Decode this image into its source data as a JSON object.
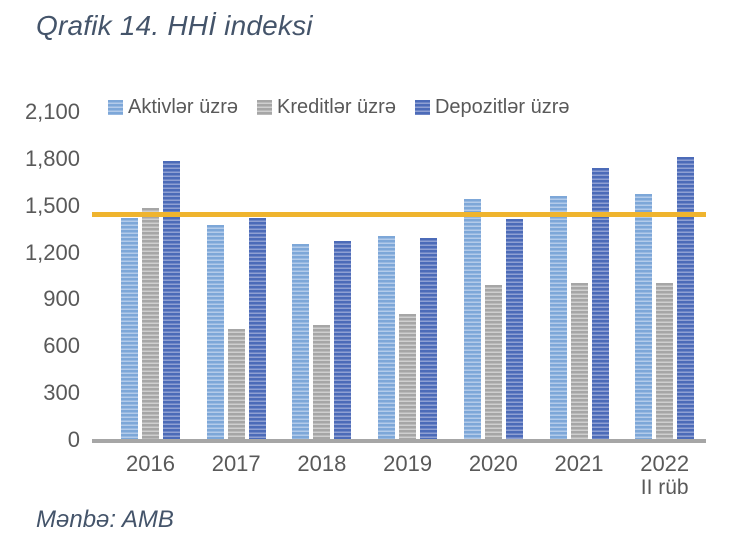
{
  "title": "Qrafik 14. HHİ indeksi",
  "source_note": "Mənbə: AMB",
  "colors": {
    "heading_text": "#44546A",
    "axis_text": "#595959",
    "axis_line": "#A6A6A6",
    "background": "#FFFFFF"
  },
  "chart_data": {
    "type": "bar",
    "title": "Qrafik 14. HHİ indeksi",
    "categories": [
      "2016",
      "2017",
      "2018",
      "2019",
      "2020",
      "2021",
      "2022"
    ],
    "category_sublabels": [
      "",
      "",
      "",
      "",
      "",
      "",
      "II rüb"
    ],
    "series": [
      {
        "key": "aktivler",
        "name": "Aktivlər üzrə",
        "color": "#7DA7D8",
        "stripe_color": "#B3CBEA",
        "values": [
          1430,
          1380,
          1260,
          1310,
          1550,
          1570,
          1580
        ]
      },
      {
        "key": "kreditler",
        "name": "Kreditlər üzrə",
        "color": "#A6A6A6",
        "stripe_color": "#CFCFCF",
        "values": [
          1490,
          720,
          740,
          810,
          1000,
          1010,
          1010
        ]
      },
      {
        "key": "depozitler",
        "name": "Depozitlər üzrə",
        "color": "#4C6BB8",
        "stripe_color": "#8FA0D3",
        "values": [
          1790,
          1430,
          1280,
          1300,
          1420,
          1750,
          1820
        ]
      }
    ],
    "threshold_line": {
      "value": 1450,
      "color": "#EFB42E"
    },
    "y_ticks": [
      0,
      300,
      600,
      900,
      1200,
      1500,
      1800,
      2100
    ],
    "y_tick_labels": [
      "0",
      "300",
      "600",
      "900",
      "1,200",
      "1,500",
      "1,800",
      "2,100"
    ],
    "ylim": [
      0,
      2100
    ],
    "grid": false,
    "legend_position": "top",
    "xlabel": "",
    "ylabel": ""
  }
}
